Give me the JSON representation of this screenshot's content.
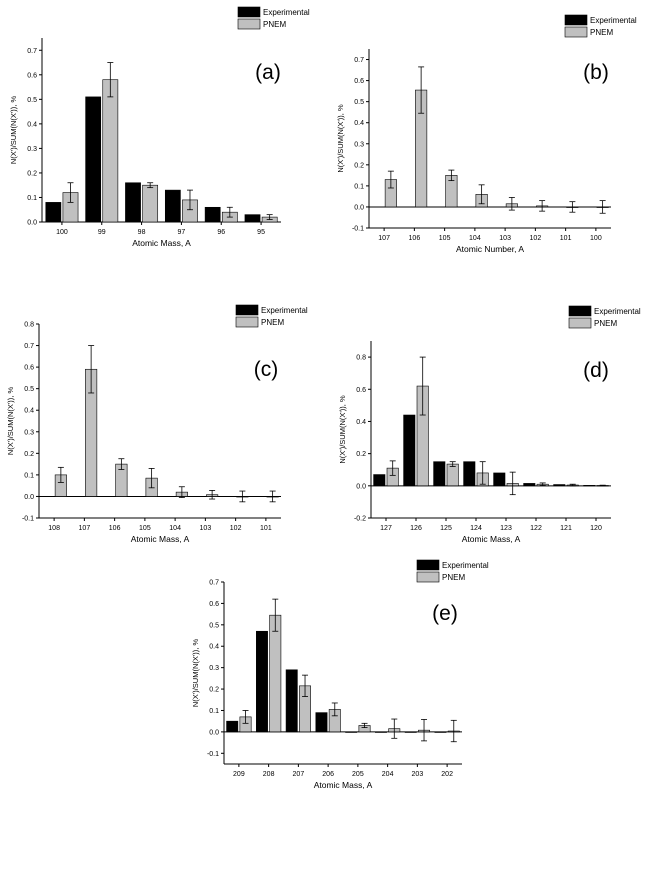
{
  "figure": {
    "background": "#ffffff"
  },
  "colors": {
    "experimental": "#000000",
    "pnem": "#c0c0c0",
    "axis": "#000000"
  },
  "chart_data": [
    {
      "id": "a",
      "type": "bar",
      "panel_label": "(a)",
      "xlabel": "Atomic Mass, A",
      "ylabel": "N(X')/SUM(N(X')), %",
      "categories": [
        "100",
        "99",
        "98",
        "97",
        "96",
        "95"
      ],
      "ylim": [
        0,
        0.75
      ],
      "yticks": [
        0.0,
        0.1,
        0.2,
        0.3,
        0.4,
        0.5,
        0.6,
        0.7
      ],
      "ytick_labels": [
        "0.0",
        "0.1",
        "0.2",
        "0.3",
        "0.4",
        "0.5",
        "0.6",
        "0.7"
      ],
      "legend": {
        "placement": "top-right",
        "entries": [
          "Experimental",
          "PNEM"
        ]
      },
      "series": [
        {
          "name": "Experimental",
          "values": [
            0.08,
            0.51,
            0.16,
            0.13,
            0.06,
            0.03
          ]
        },
        {
          "name": "PNEM",
          "values": [
            0.12,
            0.58,
            0.15,
            0.09,
            0.04,
            0.02
          ],
          "errors": [
            0.04,
            0.07,
            0.01,
            0.04,
            0.02,
            0.01
          ]
        }
      ]
    },
    {
      "id": "b",
      "type": "bar",
      "panel_label": "(b)",
      "xlabel": "Atomic Number, A",
      "ylabel": "N(X')/SUM(N(X')), %",
      "categories": [
        "107",
        "106",
        "105",
        "104",
        "103",
        "102",
        "101",
        "100"
      ],
      "ylim": [
        -0.1,
        0.75
      ],
      "yticks": [
        -0.1,
        0.0,
        0.1,
        0.2,
        0.3,
        0.4,
        0.5,
        0.6,
        0.7
      ],
      "ytick_labels": [
        "-0.1",
        "0.0",
        "0.1",
        "0.2",
        "0.3",
        "0.4",
        "0.5",
        "0.6",
        "0.7"
      ],
      "legend": {
        "placement": "top-right",
        "entries": [
          "Experimental",
          "PNEM"
        ]
      },
      "series": [
        {
          "name": "PNEM",
          "values": [
            0.13,
            0.555,
            0.15,
            0.06,
            0.015,
            0.005,
            0.0,
            0.0
          ],
          "errors": [
            0.04,
            0.11,
            0.025,
            0.045,
            0.03,
            0.025,
            0.025,
            0.03
          ]
        }
      ]
    },
    {
      "id": "c",
      "type": "bar",
      "panel_label": "(c)",
      "xlabel": "Atomic Mass, A",
      "ylabel": "N(X')/SUM(N(X')), %",
      "categories": [
        "108",
        "107",
        "106",
        "105",
        "104",
        "103",
        "102",
        "101"
      ],
      "ylim": [
        -0.1,
        0.8
      ],
      "yticks": [
        -0.1,
        0.0,
        0.1,
        0.2,
        0.3,
        0.4,
        0.5,
        0.6,
        0.7,
        0.8
      ],
      "ytick_labels": [
        "-0.1",
        "0.0",
        "0.1",
        "0.2",
        "0.3",
        "0.4",
        "0.5",
        "0.6",
        "0.7",
        "0.8"
      ],
      "legend": {
        "placement": "top-right",
        "entries": [
          "Experimental",
          "PNEM"
        ]
      },
      "series": [
        {
          "name": "PNEM",
          "values": [
            0.1,
            0.59,
            0.15,
            0.085,
            0.02,
            0.008,
            0.0,
            0.0
          ],
          "errors": [
            0.035,
            0.11,
            0.025,
            0.045,
            0.025,
            0.02,
            0.025,
            0.025
          ]
        }
      ]
    },
    {
      "id": "d",
      "type": "bar",
      "panel_label": "(d)",
      "xlabel": "Atomic Mass, A",
      "ylabel": "N(X')/SUM(N(X')), %",
      "categories": [
        "127",
        "126",
        "125",
        "124",
        "123",
        "122",
        "121",
        "120"
      ],
      "ylim": [
        -0.2,
        0.9
      ],
      "yticks": [
        -0.2,
        0.0,
        0.2,
        0.4,
        0.6,
        0.8
      ],
      "ytick_labels": [
        "-0.2",
        "0.0",
        "0.2",
        "0.4",
        "0.6",
        "0.8"
      ],
      "legend": {
        "placement": "top-right",
        "entries": [
          "Experimental",
          "PNEM"
        ]
      },
      "series": [
        {
          "name": "Experimental",
          "values": [
            0.07,
            0.44,
            0.15,
            0.15,
            0.08,
            0.015,
            0.008,
            0.003
          ]
        },
        {
          "name": "PNEM",
          "values": [
            0.11,
            0.62,
            0.135,
            0.08,
            0.015,
            0.01,
            0.005,
            0.002
          ],
          "errors": [
            0.045,
            0.18,
            0.015,
            0.07,
            0.07,
            0.008,
            0.005,
            0.002
          ]
        }
      ]
    },
    {
      "id": "e",
      "type": "bar",
      "panel_label": "(e)",
      "xlabel": "Atomic Mass, A",
      "ylabel": "N(X')/SUM(N(X')), %",
      "categories": [
        "209",
        "208",
        "207",
        "206",
        "205",
        "204",
        "203",
        "202"
      ],
      "ylim": [
        -0.15,
        0.7
      ],
      "yticks": [
        -0.1,
        0.0,
        0.1,
        0.2,
        0.3,
        0.4,
        0.5,
        0.6,
        0.7
      ],
      "ytick_labels": [
        "-0.1",
        "0.0",
        "0.1",
        "0.2",
        "0.3",
        "0.4",
        "0.5",
        "0.6",
        "0.7"
      ],
      "legend": {
        "placement": "top-right",
        "entries": [
          "Experimental",
          "PNEM"
        ]
      },
      "series": [
        {
          "name": "Experimental",
          "values": [
            0.05,
            0.47,
            0.29,
            0.09,
            0.0,
            0.0,
            0.0,
            0.0
          ]
        },
        {
          "name": "PNEM",
          "values": [
            0.07,
            0.545,
            0.215,
            0.105,
            0.03,
            0.015,
            0.008,
            0.004
          ],
          "errors": [
            0.03,
            0.075,
            0.05,
            0.03,
            0.01,
            0.045,
            0.05,
            0.05
          ]
        }
      ]
    }
  ]
}
